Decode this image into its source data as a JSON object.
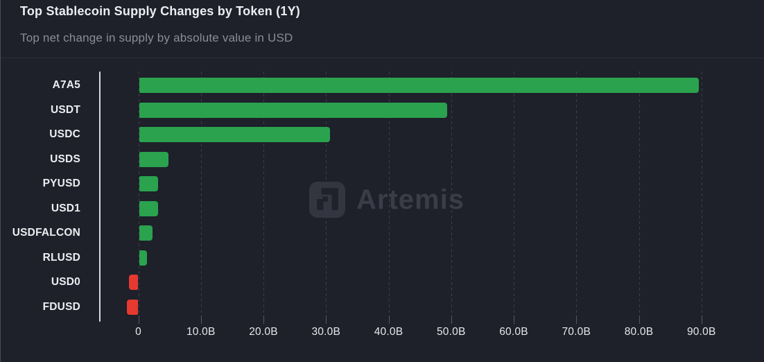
{
  "header": {
    "title": "Top Stablecoin Supply Changes by Token (1Y)",
    "subtitle": "Top net change in supply by absolute value in USD"
  },
  "watermark": {
    "text": "Artemis",
    "logo": "artemis-logo"
  },
  "colors": {
    "background": "#1e202a",
    "positive_bar": "#2aa24e",
    "negative_bar": "#e63a30",
    "gridline": "#3d404a",
    "axis_line": "#d9dade",
    "text_primary": "#edeef2",
    "text_secondary": "#8a8e99"
  },
  "chart_data": {
    "type": "bar",
    "orientation": "horizontal",
    "title": "Top Stablecoin Supply Changes by Token (1Y)",
    "subtitle": "Top net change in supply by absolute value in USD",
    "xlabel": "",
    "ylabel": "",
    "unit": "USD billions",
    "categories": [
      "A7A5",
      "USDT",
      "USDC",
      "USDS",
      "PYUSD",
      "USD1",
      "USDFALCON",
      "RLUSD",
      "USD0",
      "FDUSD"
    ],
    "values": [
      89.5,
      49.3,
      30.5,
      4.7,
      3.1,
      3.1,
      2.2,
      1.3,
      -1.5,
      -1.8
    ],
    "x_ticks": [
      "0",
      "10.0B",
      "20.0B",
      "30.0B",
      "40.0B",
      "50.0B",
      "60.0B",
      "70.0B",
      "80.0B",
      "90.0B"
    ],
    "x_tick_values": [
      0,
      10,
      20,
      30,
      40,
      50,
      60,
      70,
      80,
      90
    ],
    "xlim": [
      -6.2,
      99
    ],
    "grid": "dashed-vertical",
    "legend": "none"
  }
}
